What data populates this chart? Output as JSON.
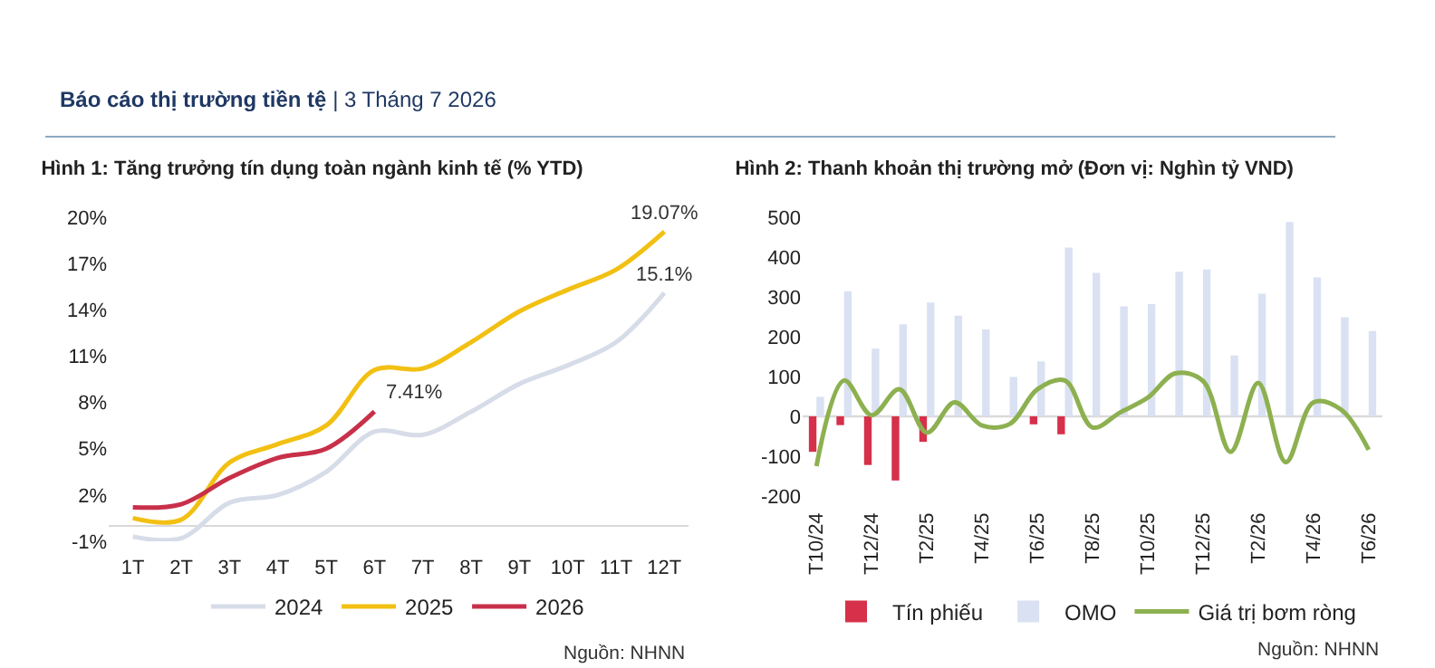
{
  "chart_data": [
    {
      "type": "line",
      "title": "Hình 1: Tăng trưởng tín dụng toàn ngành kinh tế (% YTD)",
      "categories": [
        "1T",
        "2T",
        "3T",
        "4T",
        "5T",
        "6T",
        "7T",
        "8T",
        "9T",
        "10T",
        "11T",
        "12T"
      ],
      "series": [
        {
          "name": "2024",
          "color": "#d6dce8",
          "values": [
            -0.7,
            -0.8,
            1.5,
            2.0,
            3.5,
            6.1,
            5.9,
            7.4,
            9.2,
            10.4,
            11.9,
            15.1
          ]
        },
        {
          "name": "2025",
          "color": "#f2c012",
          "values": [
            0.5,
            0.4,
            4.1,
            5.3,
            6.5,
            10.1,
            10.2,
            11.9,
            13.9,
            15.3,
            16.6,
            19.07
          ]
        },
        {
          "name": "2026",
          "color": "#c8304a",
          "values": [
            1.2,
            1.4,
            3.1,
            4.4,
            5.0,
            7.41,
            null,
            null,
            null,
            null,
            null,
            null
          ]
        }
      ],
      "ylim": [
        -1,
        20
      ],
      "yticks": [
        {
          "value": -1,
          "label": "-1%"
        },
        {
          "value": 2,
          "label": "2%"
        },
        {
          "value": 5,
          "label": "5%"
        },
        {
          "value": 8,
          "label": "8%"
        },
        {
          "value": 11,
          "label": "11%"
        },
        {
          "value": 14,
          "label": "14%"
        },
        {
          "value": 17,
          "label": "17%"
        },
        {
          "value": 20,
          "label": "20%"
        }
      ],
      "grid": false,
      "legend": "bottom",
      "marker": "none",
      "annotations": [
        "Báo cáo thị trường tiền tệ | 3 Tháng 7 2026",
        {
          "text": "19.07%",
          "x": "12T",
          "y": 19.07
        },
        {
          "text": "15.1%",
          "x": "12T",
          "y": 15.1
        },
        {
          "text": "7.41%",
          "x": "6T",
          "y": 7.41
        },
        "Nguồn: NHNN"
      ]
    },
    {
      "type": "bar",
      "title": "Hình 2: Thanh khoản thị trường mở (Đơn vị: Nghìn tỷ VND)",
      "categories": [
        "T10/24",
        null,
        "T12/24",
        null,
        "T2/25",
        null,
        "T4/25",
        null,
        "T6/25",
        null,
        "T8/25",
        null,
        "T10/25",
        null,
        "T12/25",
        null,
        "T2/26",
        null,
        "T4/26",
        null,
        "T6/26"
      ],
      "series": [
        {
          "name": "Tín phiếu",
          "color": "#d7304a",
          "values": [
            -89,
            -22,
            -122,
            -161,
            -64,
            null,
            null,
            null,
            -20,
            -45,
            null,
            null,
            null,
            null,
            null,
            null,
            null,
            null,
            null,
            null,
            null
          ]
        },
        {
          "name": "OMO",
          "color": "#d9e1f2",
          "values": [
            49,
            314,
            170,
            231,
            286,
            253,
            218,
            99,
            138,
            424,
            360,
            276,
            282,
            363,
            369,
            153,
            308,
            488,
            349,
            249,
            214
          ]
        },
        {
          "name": "Giá trị bơm ròng",
          "type": "line",
          "color": "#8db050",
          "values": [
            -125,
            90,
            3,
            68,
            -41,
            35,
            -23,
            -19,
            68,
            90,
            -28,
            10,
            47,
            108,
            89,
            -89,
            84,
            -115,
            35,
            17,
            -84
          ]
        }
      ],
      "ylim": [
        -200,
        500
      ],
      "yticks": [
        -200,
        -100,
        0,
        100,
        200,
        300,
        400,
        500
      ],
      "grid": false,
      "legend": "bottom",
      "marker": "none",
      "ref_lines": [
        {
          "axis": "y",
          "value": 0,
          "color": "#d9d9d9"
        }
      ],
      "annotations": [
        "Nguồn: NHNN"
      ]
    }
  ]
}
